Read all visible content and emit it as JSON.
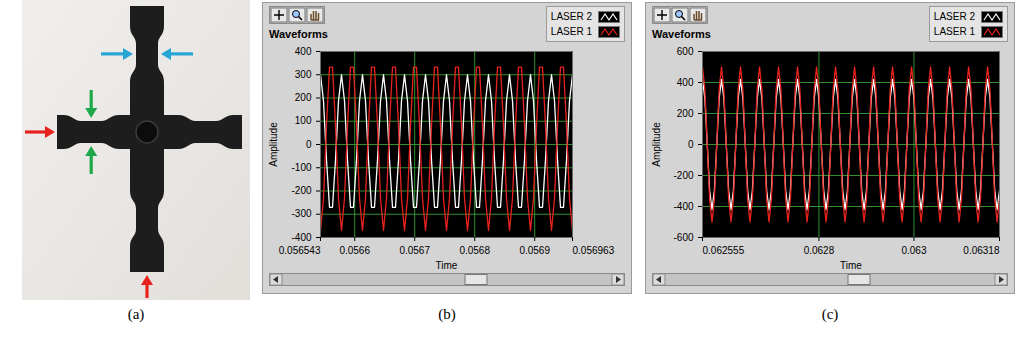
{
  "photo": {
    "panel_label": "(a)"
  },
  "chart_data": [
    {
      "type": "line",
      "title": "Waveforms",
      "panel_label": "(b)",
      "x_label": "Time",
      "y_label": "Amplitude",
      "xlim": [
        0.056543,
        0.056963
      ],
      "ylim": [
        -400,
        400
      ],
      "xticks": [
        0.056543,
        0.0566,
        0.0567,
        0.0568,
        0.0569,
        0.056963
      ],
      "yticks": [
        -400,
        -300,
        -200,
        -100,
        0,
        100,
        200,
        300,
        400
      ],
      "grid": true,
      "legend": "top-right",
      "x": [
        0.056543,
        0.056548,
        0.056553,
        0.056558,
        0.056563,
        0.056568,
        0.056573,
        0.056578,
        0.056583,
        0.056588,
        0.056593,
        0.056598,
        0.056603,
        0.056608,
        0.056613,
        0.056618,
        0.056623,
        0.056628,
        0.056633,
        0.056638,
        0.056643,
        0.056648,
        0.056653,
        0.056658,
        0.056663,
        0.056668,
        0.056673,
        0.056678,
        0.056683,
        0.056688,
        0.056693,
        0.056698,
        0.056703,
        0.056708,
        0.056713,
        0.056718,
        0.056723,
        0.056728,
        0.056733,
        0.056738,
        0.056743,
        0.056748,
        0.056753,
        0.056758,
        0.056763,
        0.056768,
        0.056773,
        0.056778,
        0.056783,
        0.056788,
        0.056793,
        0.056798,
        0.056803,
        0.056808,
        0.056813,
        0.056818,
        0.056823,
        0.056828,
        0.056833,
        0.056838,
        0.056843,
        0.056848,
        0.056853,
        0.056858,
        0.056863,
        0.056868,
        0.056873,
        0.056878,
        0.056883,
        0.056888,
        0.056893,
        0.056898,
        0.056903,
        0.056908,
        0.056913,
        0.056918,
        0.056923,
        0.056928,
        0.056933,
        0.056938,
        0.056943,
        0.056948,
        0.056953,
        0.056958,
        0.056963
      ],
      "series": [
        {
          "name": "LASER 2",
          "color": "#ffffff",
          "values": [
            300,
            187,
            -67,
            -270,
            -270,
            -67,
            187,
            300,
            187,
            -67,
            -270,
            -270,
            -67,
            187,
            300,
            187,
            -67,
            -270,
            -270,
            -67,
            187,
            300,
            187,
            -67,
            -270,
            -270,
            -67,
            187,
            300,
            187,
            -67,
            -270,
            -270,
            -67,
            187,
            300,
            187,
            -67,
            -270,
            -270,
            -67,
            187,
            300,
            187,
            -67,
            -270,
            -270,
            -67,
            187,
            300,
            187,
            -67,
            -270,
            -270,
            -67,
            187,
            300,
            187,
            -67,
            -270,
            -270,
            -67,
            187,
            300,
            187,
            -67,
            -270,
            -270,
            -67,
            187,
            300,
            187,
            -67,
            -270,
            -270,
            -67,
            187,
            300,
            187,
            -67,
            -270,
            -270,
            -67,
            187,
            300
          ]
        },
        {
          "name": "LASER 1",
          "color": "#e8231d",
          "values": [
            -370,
            -231,
            82,
            333,
            333,
            82,
            -231,
            -370,
            -231,
            82,
            333,
            333,
            82,
            -231,
            -370,
            -231,
            82,
            333,
            333,
            82,
            -231,
            -370,
            -231,
            82,
            333,
            333,
            82,
            -231,
            -370,
            -231,
            82,
            333,
            333,
            82,
            -231,
            -370,
            -231,
            82,
            333,
            333,
            82,
            -231,
            -370,
            -231,
            82,
            333,
            333,
            82,
            -231,
            -370,
            -231,
            82,
            333,
            333,
            82,
            -231,
            -370,
            -231,
            82,
            333,
            333,
            82,
            -231,
            -370,
            -231,
            82,
            333,
            333,
            82,
            -231,
            -370,
            -231,
            82,
            333,
            333,
            82,
            -231,
            -370,
            -231,
            82,
            333,
            333,
            82,
            -231,
            -370
          ]
        }
      ]
    },
    {
      "type": "line",
      "title": "Waveforms",
      "panel_label": "(c)",
      "x_label": "Time",
      "y_label": "Amplitude",
      "xlim": [
        0.062555,
        0.06318
      ],
      "ylim": [
        -600,
        600
      ],
      "xticks": [
        0.062555,
        0.0628,
        0.063,
        0.06318
      ],
      "yticks": [
        -600,
        -400,
        -200,
        0,
        200,
        400,
        600
      ],
      "grid": true,
      "legend": "top-right",
      "x": [
        0.062555,
        0.06256,
        0.062565,
        0.06257,
        0.062575,
        0.06258,
        0.062585,
        0.06259,
        0.062595,
        0.0626,
        0.062605,
        0.06261,
        0.062615,
        0.06262,
        0.062625,
        0.06263,
        0.062635,
        0.06264,
        0.062645,
        0.06265,
        0.062655,
        0.06266,
        0.062665,
        0.06267,
        0.062675,
        0.06268,
        0.062685,
        0.06269,
        0.062695,
        0.0627,
        0.062705,
        0.06271,
        0.062715,
        0.06272,
        0.062725,
        0.06273,
        0.062735,
        0.06274,
        0.062745,
        0.06275,
        0.062755,
        0.06276,
        0.062765,
        0.06277,
        0.062775,
        0.06278,
        0.062785,
        0.06279,
        0.062795,
        0.0628,
        0.062805,
        0.06281,
        0.062815,
        0.06282,
        0.062825,
        0.06283,
        0.062835,
        0.06284,
        0.062845,
        0.06285,
        0.062855,
        0.06286,
        0.062865,
        0.06287,
        0.062875,
        0.06288,
        0.062885,
        0.06289,
        0.062895,
        0.0629,
        0.062905,
        0.06291,
        0.062915,
        0.06292,
        0.062925,
        0.06293,
        0.062935,
        0.06294,
        0.062945,
        0.06295,
        0.062955,
        0.06296,
        0.062965,
        0.06297,
        0.062975,
        0.06298,
        0.062985,
        0.06299,
        0.062995,
        0.063,
        0.063005,
        0.06301,
        0.063015,
        0.06302,
        0.063025,
        0.06303,
        0.063035,
        0.06304,
        0.063045,
        0.06305,
        0.063055,
        0.06306,
        0.063065,
        0.06307,
        0.063075,
        0.06308,
        0.063085,
        0.06309,
        0.063095,
        0.0631,
        0.063105,
        0.06311,
        0.063115,
        0.06312,
        0.063125,
        0.06313,
        0.063135,
        0.06314,
        0.063145,
        0.06315,
        0.063155,
        0.06316,
        0.063165,
        0.06317,
        0.063175,
        0.06318
      ],
      "series": [
        {
          "name": "LASER 2",
          "color": "#ffffff",
          "values": [
            420,
            297,
            0,
            -297,
            -420,
            -297,
            0,
            297,
            420,
            297,
            0,
            -297,
            -420,
            -297,
            0,
            297,
            420,
            297,
            0,
            -297,
            -420,
            -297,
            0,
            297,
            420,
            297,
            0,
            -297,
            -420,
            -297,
            0,
            297,
            420,
            297,
            0,
            -297,
            -420,
            -297,
            0,
            297,
            420,
            297,
            0,
            -297,
            -420,
            -297,
            0,
            297,
            420,
            297,
            0,
            -297,
            -420,
            -297,
            0,
            297,
            420,
            297,
            0,
            -297,
            -420,
            -297,
            0,
            297,
            420,
            297,
            0,
            -297,
            -420,
            -297,
            0,
            297,
            420,
            297,
            0,
            -297,
            -420,
            -297,
            0,
            297,
            420,
            297,
            0,
            -297,
            -420,
            -297,
            0,
            297,
            420,
            297,
            0,
            -297,
            -420,
            -297,
            0,
            297,
            420,
            297,
            0,
            -297,
            -420,
            -297,
            0,
            297,
            420,
            297,
            0,
            -297,
            -420,
            -297,
            0,
            297,
            420,
            297,
            0,
            -297,
            -420,
            -297,
            0,
            297,
            420,
            297,
            0,
            -297,
            -420,
            -297
          ]
        },
        {
          "name": "LASER 1",
          "color": "#e8231d",
          "values": [
            500,
            354,
            0,
            -354,
            -500,
            -354,
            0,
            354,
            500,
            354,
            0,
            -354,
            -500,
            -354,
            0,
            354,
            500,
            354,
            0,
            -354,
            -500,
            -354,
            0,
            354,
            500,
            354,
            0,
            -354,
            -500,
            -354,
            0,
            354,
            500,
            354,
            0,
            -354,
            -500,
            -354,
            0,
            354,
            500,
            354,
            0,
            -354,
            -500,
            -354,
            0,
            354,
            500,
            354,
            0,
            -354,
            -500,
            -354,
            0,
            354,
            500,
            354,
            0,
            -354,
            -500,
            -354,
            0,
            354,
            500,
            354,
            0,
            -354,
            -500,
            -354,
            0,
            354,
            500,
            354,
            0,
            -354,
            -500,
            -354,
            0,
            354,
            500,
            354,
            0,
            -354,
            -500,
            -354,
            0,
            354,
            500,
            354,
            0,
            -354,
            -500,
            -354,
            0,
            354,
            500,
            354,
            0,
            -354,
            -500,
            -354,
            0,
            354,
            500,
            354,
            0,
            -354,
            -500,
            -354,
            0,
            354,
            500,
            354,
            0,
            -354,
            -500,
            -354,
            0,
            354,
            500,
            354,
            0,
            -354,
            -500,
            -354
          ]
        }
      ]
    }
  ]
}
